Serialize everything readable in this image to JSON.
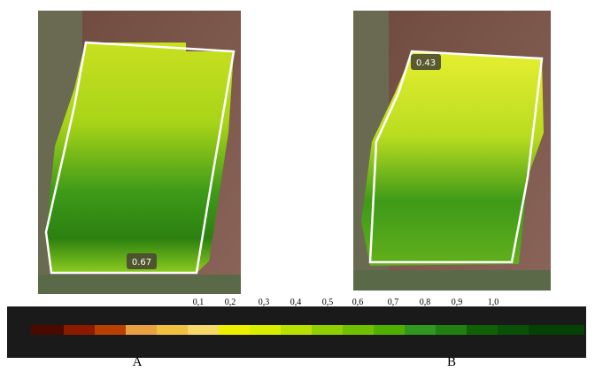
{
  "panels": [
    {
      "label": "A",
      "badge": "0.67"
    },
    {
      "label": "B",
      "badge": "0.43"
    }
  ],
  "colorbar": {
    "ticks": [
      "0,1",
      "0,2",
      "0,3",
      "0,4",
      "0,5",
      "0,6",
      "0,7",
      "0,8",
      "0,9",
      "1,0"
    ]
  }
}
